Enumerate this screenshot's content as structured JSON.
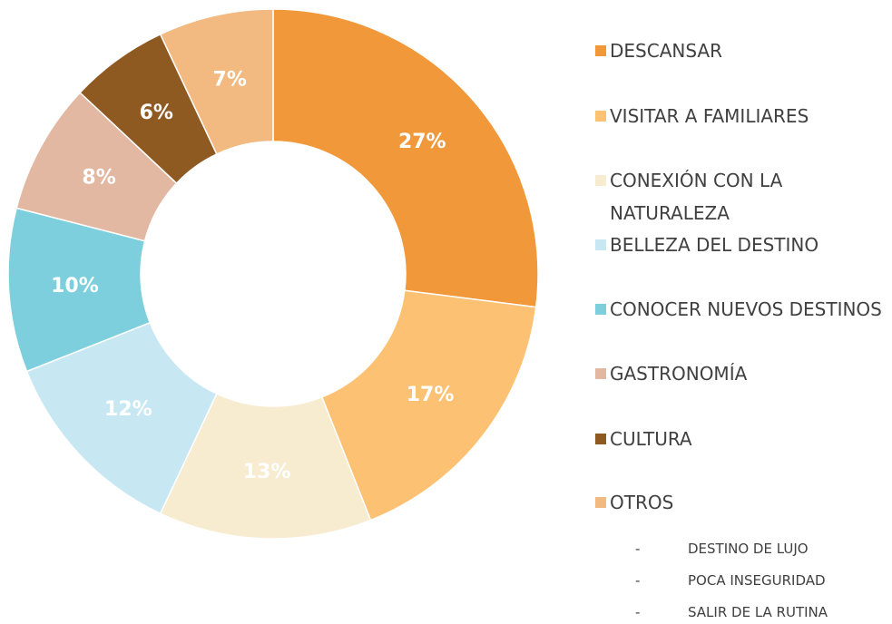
{
  "chart_data": {
    "type": "pie",
    "hole": 0.5,
    "categories": [
      "DESCANSAR",
      "VISITAR A FAMILIARES",
      "CONEXIÓN CON LA NATURALEZA",
      "BELLEZA DEL DESTINO",
      "CONOCER NUEVOS DESTINOS",
      "GASTRONOMÍA",
      "CULTURA",
      "OTROS"
    ],
    "values": [
      27,
      17,
      13,
      12,
      10,
      8,
      6,
      7
    ],
    "value_labels": [
      "27%",
      "17%",
      "13%",
      "12%",
      "10%",
      "8%",
      "6%",
      "7%"
    ],
    "colors": [
      "#f0983a",
      "#fdc173",
      "#f7ebd0",
      "#c7e8f3",
      "#7dcfdd",
      "#e2b8a3",
      "#8e5a22",
      "#f2b981"
    ],
    "otros_items": [
      "DESTINO DE LUJO",
      "POCA INSEGURIDAD",
      "SALIR DE LA RUTINA"
    ],
    "legend": "right"
  }
}
